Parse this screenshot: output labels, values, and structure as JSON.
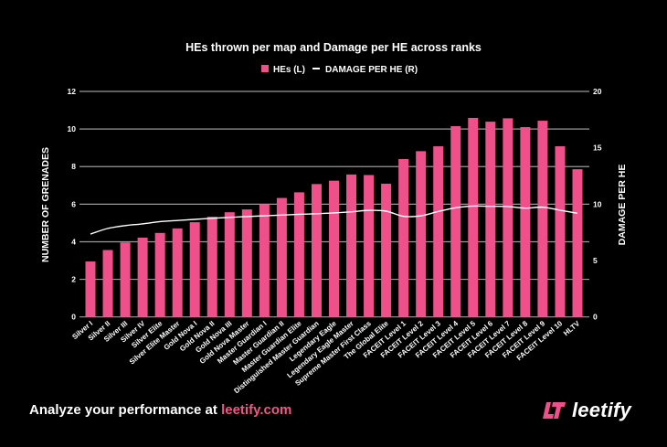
{
  "chart_data": {
    "type": "bar",
    "title": "HEs thrown per map and Damage per HE across ranks",
    "legend": {
      "placement": "top-center",
      "entries": [
        {
          "label": "HEs (L)",
          "kind": "bar",
          "color": "#f0508a"
        },
        {
          "label": "DAMAGE PER HE (R)",
          "kind": "line",
          "color": "#ffffff"
        }
      ]
    },
    "ylabel": "NUMBER OF GRENADES",
    "y2label": "DAMAGE PER HE",
    "xlabel": "",
    "ylim": [
      0,
      12
    ],
    "y2lim": [
      0,
      20
    ],
    "yticks": [
      0,
      2,
      4,
      6,
      8,
      10,
      12
    ],
    "y2ticks": [
      0,
      5,
      10,
      15,
      20
    ],
    "grid": true,
    "categories": [
      "Silver I",
      "Silver II",
      "Silver III",
      "Silver IV",
      "Silver Elite",
      "Silver Elite Master",
      "Gold Nova I",
      "Gold Nova II",
      "Gold Nova III",
      "Gold Nova Master",
      "Master Guardian I",
      "Master Guardian II",
      "Master Guardian Elite",
      "Distinguished Master Guardian",
      "Legendary Eagle",
      "Legendary Eagle Master",
      "Supreme Master First Class",
      "The Global Elite",
      "FACEIT Level 1",
      "FACEIT Level 2",
      "FACEIT Level 3",
      "FACEIT Level 4",
      "FACEIT Level 5",
      "FACEIT Level 6",
      "FACEIT Level 7",
      "FACEIT Level 8",
      "FACEIT Level 9",
      "FACEIT Level 10",
      "HLTV"
    ],
    "series": [
      {
        "name": "HEs (L)",
        "type": "bar",
        "axis": "left",
        "color": "#f0508a",
        "values": [
          2.95,
          3.56,
          3.96,
          4.22,
          4.47,
          4.71,
          5.04,
          5.33,
          5.57,
          5.72,
          5.98,
          6.33,
          6.63,
          7.07,
          7.25,
          7.58,
          7.55,
          7.09,
          8.4,
          8.82,
          9.08,
          10.15,
          10.59,
          10.39,
          10.57,
          10.1,
          10.44,
          9.08,
          7.86
        ]
      },
      {
        "name": "DAMAGE PER HE (R)",
        "type": "line",
        "axis": "right",
        "color": "#ffffff",
        "values": [
          7.35,
          7.85,
          8.1,
          8.25,
          8.45,
          8.55,
          8.65,
          8.75,
          8.83,
          8.9,
          8.97,
          9.03,
          9.1,
          9.15,
          9.22,
          9.32,
          9.45,
          9.38,
          8.92,
          8.97,
          9.35,
          9.68,
          9.83,
          9.81,
          9.79,
          9.65,
          9.73,
          9.46,
          9.19
        ]
      }
    ]
  },
  "footer": {
    "text": "Analyze your performance at ",
    "link": "leetify.com"
  },
  "logo": {
    "text": "leetify",
    "mark_color": "#f0508a"
  }
}
